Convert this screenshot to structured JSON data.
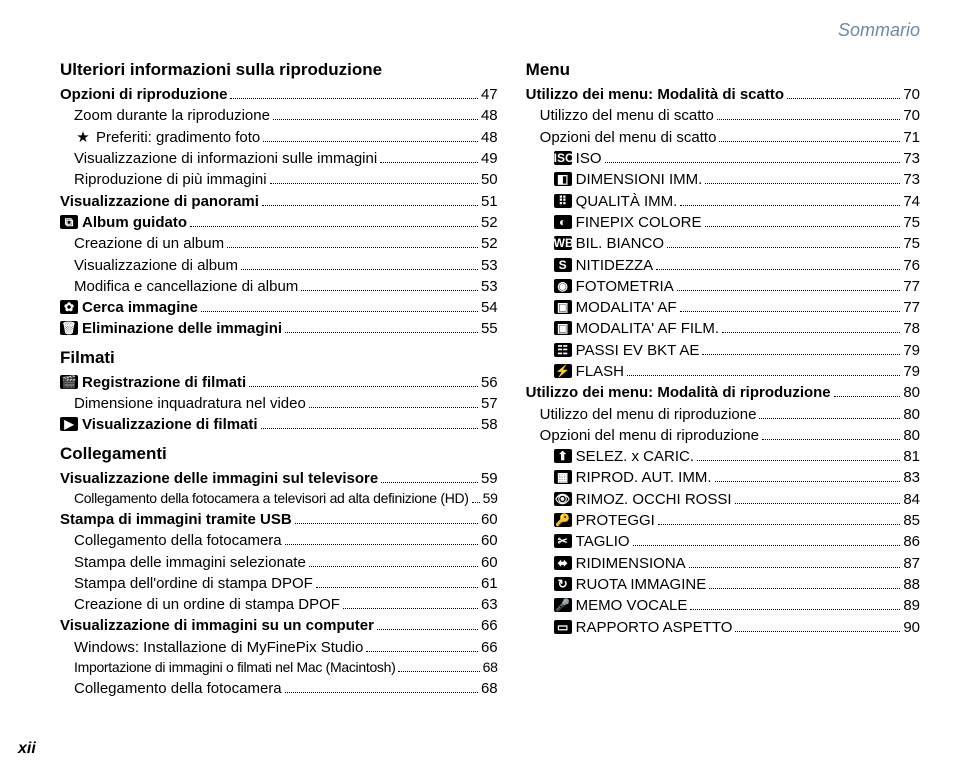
{
  "header": "Sommario",
  "pageNumber": "xii",
  "left": {
    "sections": [
      {
        "title": "Ulteriori informazioni sulla riproduzione",
        "entries": [
          {
            "label": "Opzioni di riproduzione",
            "page": "47",
            "bold": true,
            "indent": 0
          },
          {
            "label": "Zoom durante la riproduzione",
            "page": "48",
            "indent": 1
          },
          {
            "label": "Preferiti: gradimento foto",
            "page": "48",
            "indent": 1,
            "icon": "★"
          },
          {
            "label": "Visualizzazione di informazioni sulle immagini",
            "page": "49",
            "indent": 1
          },
          {
            "label": "Riproduzione di più immagini",
            "page": "50",
            "indent": 1
          },
          {
            "label": "Visualizzazione di panorami",
            "page": "51",
            "bold": true,
            "indent": 0
          },
          {
            "label": "Album guidato",
            "page": "52",
            "bold": true,
            "indent": 0,
            "iconType": "box",
            "icon": "⧉"
          },
          {
            "label": "Creazione di un album",
            "page": "52",
            "indent": 1
          },
          {
            "label": "Visualizzazione di album",
            "page": "53",
            "indent": 1
          },
          {
            "label": "Modifica e cancellazione di album",
            "page": "53",
            "indent": 1
          },
          {
            "label": "Cerca immagine",
            "page": "54",
            "bold": true,
            "indent": 0,
            "iconType": "box",
            "icon": "✿"
          },
          {
            "label": "Eliminazione delle immagini",
            "page": "55",
            "bold": true,
            "indent": 0,
            "iconType": "box",
            "icon": "🗑"
          }
        ]
      },
      {
        "title": "Filmati",
        "entries": [
          {
            "label": "Registrazione di filmati",
            "page": "56",
            "bold": true,
            "indent": 0,
            "iconType": "box",
            "icon": "🎬"
          },
          {
            "label": "Dimensione inquadratura nel video",
            "page": "57",
            "indent": 1
          },
          {
            "label": "Visualizzazione di filmati",
            "page": "58",
            "bold": true,
            "indent": 0,
            "iconType": "box",
            "icon": "▶"
          }
        ]
      },
      {
        "title": "Collegamenti",
        "entries": [
          {
            "label": "Visualizzazione delle immagini sul televisore",
            "page": "59",
            "bold": true,
            "indent": 0
          },
          {
            "label": "Collegamento della fotocamera a televisori ad alta definizione (HD)",
            "page": "59",
            "indent": 1,
            "condensed": true
          },
          {
            "label": "Stampa di immagini tramite USB",
            "page": "60",
            "bold": true,
            "indent": 0
          },
          {
            "label": "Collegamento della fotocamera",
            "page": "60",
            "indent": 1
          },
          {
            "label": "Stampa delle immagini selezionate",
            "page": "60",
            "indent": 1
          },
          {
            "label": "Stampa dell'ordine di stampa DPOF",
            "page": "61",
            "indent": 1
          },
          {
            "label": "Creazione di un ordine di stampa DPOF",
            "page": "63",
            "indent": 1
          },
          {
            "label": "Visualizzazione di immagini su un computer",
            "page": "66",
            "bold": true,
            "indent": 0
          },
          {
            "label": "Windows: Installazione di MyFinePix Studio",
            "page": "66",
            "indent": 1
          },
          {
            "label": "Importazione di immagini o filmati nel Mac (Macintosh)",
            "page": "68",
            "indent": 1,
            "condensed": true
          },
          {
            "label": "Collegamento della fotocamera",
            "page": "68",
            "indent": 1
          }
        ]
      }
    ]
  },
  "right": {
    "sections": [
      {
        "title": "Menu",
        "entries": [
          {
            "label": "Utilizzo dei menu: Modalità di scatto",
            "page": "70",
            "bold": true,
            "indent": 0
          },
          {
            "label": "Utilizzo del menu di scatto",
            "page": "70",
            "indent": 1
          },
          {
            "label": "Opzioni del menu di scatto",
            "page": "71",
            "indent": 1
          },
          {
            "label": "ISO",
            "page": "73",
            "indent": 2,
            "iconType": "box",
            "icon": "ISO"
          },
          {
            "label": "DIMENSIONI IMM.",
            "page": "73",
            "indent": 2,
            "iconType": "box",
            "icon": "◧"
          },
          {
            "label": "QUALITÀ IMM.",
            "page": "74",
            "indent": 2,
            "iconType": "box",
            "icon": "⠿"
          },
          {
            "label": "FINEPIX COLORE",
            "page": "75",
            "indent": 2,
            "iconType": "box",
            "icon": "◐"
          },
          {
            "label": "BIL. BIANCO",
            "page": "75",
            "indent": 2,
            "iconType": "box",
            "icon": "WB"
          },
          {
            "label": "NITIDEZZA",
            "page": "76",
            "indent": 2,
            "iconType": "box",
            "icon": "S"
          },
          {
            "label": "FOTOMETRIA",
            "page": "77",
            "indent": 2,
            "iconType": "box",
            "icon": "◉"
          },
          {
            "label": "MODALITA' AF",
            "page": "77",
            "indent": 2,
            "iconType": "box",
            "icon": "▣"
          },
          {
            "label": "MODALITA' AF FILM.",
            "page": "78",
            "indent": 2,
            "iconType": "box",
            "icon": "▣"
          },
          {
            "label": "PASSI EV BKT AE",
            "page": "79",
            "indent": 2,
            "iconType": "box",
            "icon": "☷"
          },
          {
            "label": "FLASH",
            "page": "79",
            "indent": 2,
            "iconType": "box",
            "icon": "⚡"
          },
          {
            "label": "Utilizzo dei menu: Modalità di riproduzione",
            "page": "80",
            "bold": true,
            "indent": 0
          },
          {
            "label": "Utilizzo del menu di riproduzione",
            "page": "80",
            "indent": 1
          },
          {
            "label": "Opzioni del menu di riproduzione",
            "page": "80",
            "indent": 1
          },
          {
            "label": "SELEZ. x CARIC.",
            "page": "81",
            "indent": 2,
            "iconType": "box",
            "icon": "⬆"
          },
          {
            "label": "RIPROD. AUT. IMM.",
            "page": "83",
            "indent": 2,
            "iconType": "box",
            "icon": "▦"
          },
          {
            "label": "RIMOZ. OCCHI ROSSI",
            "page": "84",
            "indent": 2,
            "iconType": "box",
            "icon": "👁"
          },
          {
            "label": "PROTEGGI",
            "page": "85",
            "indent": 2,
            "iconType": "box",
            "icon": "🔑"
          },
          {
            "label": "TAGLIO",
            "page": "86",
            "indent": 2,
            "iconType": "box",
            "icon": "✂"
          },
          {
            "label": "RIDIMENSIONA",
            "page": "87",
            "indent": 2,
            "iconType": "box",
            "icon": "⬌"
          },
          {
            "label": "RUOTA IMMAGINE",
            "page": "88",
            "indent": 2,
            "iconType": "box",
            "icon": "↻"
          },
          {
            "label": "MEMO VOCALE",
            "page": "89",
            "indent": 2,
            "iconType": "box",
            "icon": "🎤"
          },
          {
            "label": "RAPPORTO ASPETTO",
            "page": "90",
            "indent": 2,
            "iconType": "box",
            "icon": "▭"
          }
        ]
      }
    ]
  }
}
